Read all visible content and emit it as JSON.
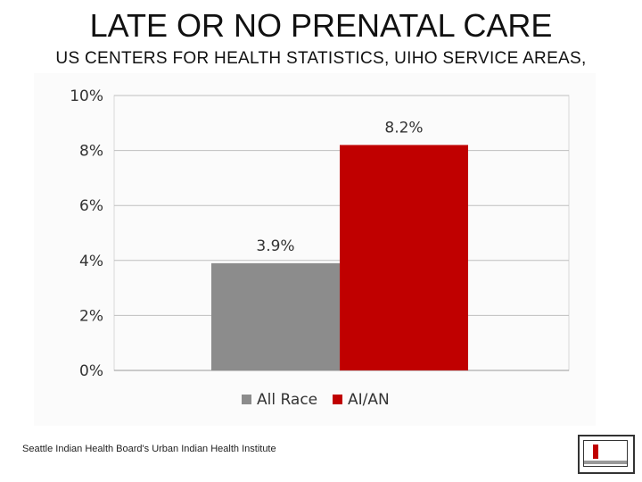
{
  "slide": {
    "title": "LATE OR NO PRENATAL CARE",
    "subtitle": "US CENTERS FOR HEALTH STATISTICS, UIHO SERVICE AREAS,",
    "footer": "Seattle Indian Health Board's Urban Indian Health Institute"
  },
  "colors": {
    "all_race": "#8c8c8c",
    "aian": "#c00000",
    "grid": "#bfbfbf"
  },
  "chart_data": {
    "type": "bar",
    "categories": [
      ""
    ],
    "series": [
      {
        "name": "All Race",
        "values": [
          3.9
        ],
        "label": "3.9%"
      },
      {
        "name": "AI/AN",
        "values": [
          8.2
        ],
        "label": "8.2%"
      }
    ],
    "ylim": [
      0,
      10
    ],
    "yticks": [
      "0%",
      "2%",
      "4%",
      "6%",
      "8%",
      "10%"
    ],
    "grid": true,
    "legend": "bottom"
  }
}
